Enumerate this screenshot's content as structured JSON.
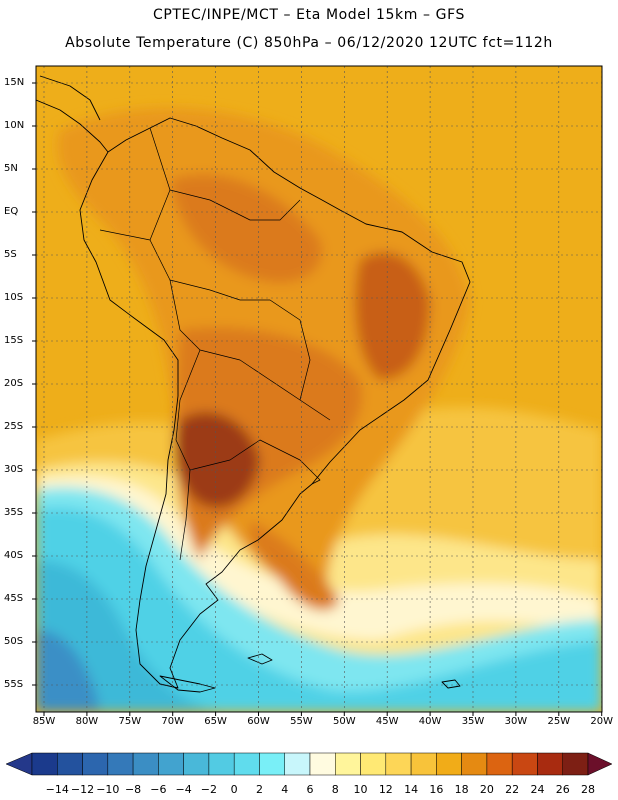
{
  "header": {
    "title_line1": "CPTEC/INPE/MCT –  Eta Model 15km – GFS",
    "title_line2": "Absolute Temperature (C) 850hPa – 06/12/2020 12UTC fct=112h"
  },
  "axes": {
    "lat_labels": [
      "15N",
      "10N",
      "5N",
      "EQ",
      "5S",
      "10S",
      "15S",
      "20S",
      "25S",
      "30S",
      "35S",
      "40S",
      "45S",
      "50S",
      "55S"
    ],
    "lon_labels": [
      "85W",
      "80W",
      "75W",
      "70W",
      "65W",
      "60W",
      "55W",
      "50W",
      "45W",
      "40W",
      "35W",
      "30W",
      "25W",
      "20W"
    ]
  },
  "colorbar": {
    "labels": [
      "-14",
      "-12",
      "-10",
      "-8",
      "-6",
      "-4",
      "-2",
      "0",
      "2",
      "4",
      "6",
      "8",
      "10",
      "12",
      "14",
      "16",
      "18",
      "20",
      "22",
      "24",
      "26",
      "28"
    ],
    "colors": [
      "#1b3a8c",
      "#23529e",
      "#2c66ae",
      "#3479b9",
      "#3b8ec4",
      "#42a3cf",
      "#49b8d9",
      "#52cbe3",
      "#60dced",
      "#79eff7",
      "#c8f6fb",
      "#fffbe0",
      "#fff59b",
      "#ffe974",
      "#fdd657",
      "#f8c33a",
      "#f1ac18",
      "#e58a12",
      "#dc6411",
      "#c94712",
      "#a82b10",
      "#7d1f14"
    ],
    "under_color": "#24388a",
    "over_color": "#6b0f2a"
  },
  "map_colors": {
    "ocean_warm": "#eeae1a",
    "land_warm": "#e9981a",
    "land_hot": "#db7a1c",
    "land_hotter": "#c85f16",
    "land_core": "#9c3b14",
    "subtropical": "#f6c440",
    "pale": "#fde68a",
    "cream": "#fff6d0",
    "cyan_light": "#7ee6f0",
    "cyan": "#4fd1e6",
    "cyan_deep": "#3db9d8",
    "blue": "#3a8fc6",
    "coast": "#000000"
  }
}
